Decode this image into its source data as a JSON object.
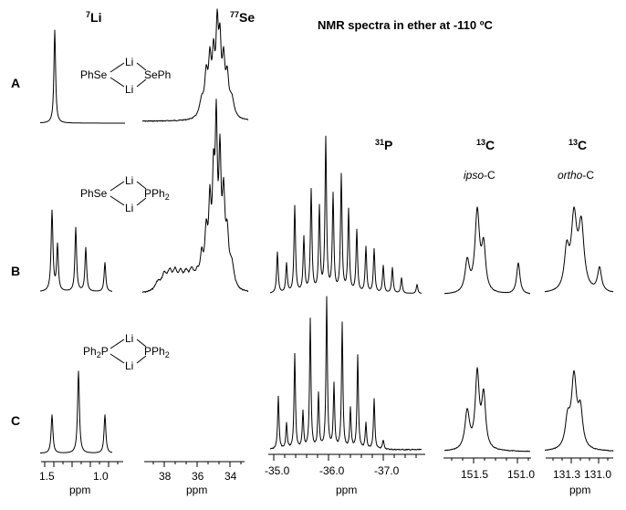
{
  "figure": {
    "title": "NMR spectra in ether at -110 ºC",
    "row_labels": [
      "A",
      "B",
      "C"
    ],
    "headers": {
      "li": {
        "sup": "7",
        "text": "Li"
      },
      "se": {
        "sup": "77",
        "text": "Se"
      },
      "p": {
        "sup": "31",
        "text": "P"
      },
      "c_ipso": {
        "sup": "13",
        "text": "C",
        "sub_italic": "ipso",
        "sub_rest": "-C"
      },
      "c_ortho": {
        "sup": "13",
        "text": "C",
        "sub_italic": "ortho",
        "sub_rest": "-C"
      }
    },
    "structures": {
      "A": {
        "left": "PhSe",
        "right": "SePh",
        "top": "Li",
        "bottom": "Li"
      },
      "B": {
        "left": "PhSe",
        "right": "PPh",
        "right_sub": "2",
        "top": "Li",
        "bottom": "Li"
      },
      "C": {
        "left": "Ph",
        "left_sub": "2",
        "left_after": "P",
        "right": "PPh",
        "right_sub": "2",
        "top": "Li",
        "bottom": "Li"
      }
    },
    "axes": {
      "li": {
        "ticks": [
          "1.5",
          "1.0"
        ],
        "unit": "ppm"
      },
      "se": {
        "ticks": [
          "38",
          "36",
          "34"
        ],
        "unit": "ppm"
      },
      "p": {
        "ticks": [
          "-35.0",
          "-36.0",
          "-37.0"
        ],
        "unit": "ppm"
      },
      "c_ipso": {
        "ticks": [
          "151.5",
          "151.0"
        ],
        "unit": ""
      },
      "c_ortho": {
        "ticks": [
          "131.3",
          "131.0"
        ],
        "unit": "ppm"
      }
    }
  }
}
